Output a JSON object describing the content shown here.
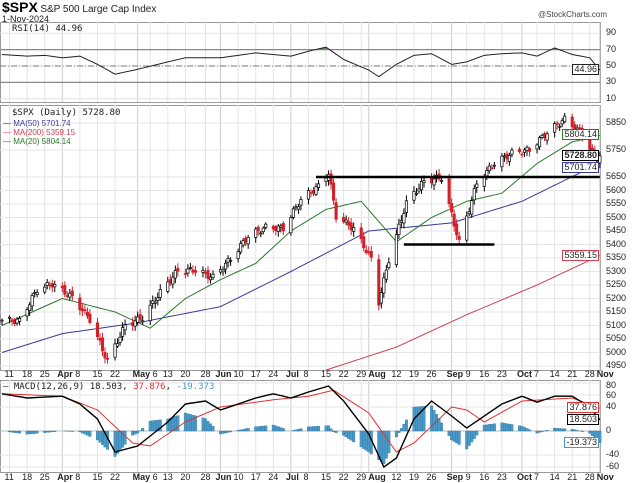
{
  "header": {
    "symbol": "$SPX",
    "name": "S&P 500 Large Cap Index",
    "date": "1-Nov-2024",
    "watermark": "@StockCharts.com"
  },
  "chart_data": [
    {
      "type": "line",
      "panel": "rsi",
      "legend": "RSI(14) 44.96",
      "last_label": "44.96",
      "yticks": [
        90,
        70,
        50,
        30,
        10
      ],
      "ylim": [
        0,
        100
      ],
      "overbought": 70,
      "oversold": 30,
      "mid": 50,
      "fill_color": "#5a8a5a",
      "values": [
        [
          "2024-03-08",
          64
        ],
        [
          "2024-03-18",
          62
        ],
        [
          "2024-03-25",
          63
        ],
        [
          "2024-04-01",
          60
        ],
        [
          "2024-04-08",
          62
        ],
        [
          "2024-04-15",
          52
        ],
        [
          "2024-04-22",
          40
        ],
        [
          "2024-05-01",
          46
        ],
        [
          "2024-05-13",
          55
        ],
        [
          "2024-05-20",
          60
        ],
        [
          "2024-06-03",
          60
        ],
        [
          "2024-06-17",
          66
        ],
        [
          "2024-07-01",
          62
        ],
        [
          "2024-07-08",
          68
        ],
        [
          "2024-07-15",
          73
        ],
        [
          "2024-07-22",
          58
        ],
        [
          "2024-08-01",
          45
        ],
        [
          "2024-08-05",
          37
        ],
        [
          "2024-08-12",
          52
        ],
        [
          "2024-08-19",
          63
        ],
        [
          "2024-08-26",
          65
        ],
        [
          "2024-09-03",
          52
        ],
        [
          "2024-09-09",
          55
        ],
        [
          "2024-09-16",
          63
        ],
        [
          "2024-09-23",
          65
        ],
        [
          "2024-10-01",
          66
        ],
        [
          "2024-10-07",
          62
        ],
        [
          "2024-10-14",
          72
        ],
        [
          "2024-10-21",
          64
        ],
        [
          "2024-10-28",
          60
        ],
        [
          "2024-11-01",
          44.96
        ]
      ]
    },
    {
      "type": "candlestick",
      "panel": "price",
      "legend": "$SPX (Daily) 5728.80",
      "last_label": "5728.80",
      "ylim": [
        4925,
        5900
      ],
      "yticks": [
        5850,
        5750,
        5650,
        5600,
        5550,
        5500,
        5450,
        5400,
        5350,
        5300,
        5250,
        5200,
        5150,
        5100,
        5050,
        5000,
        4950
      ],
      "closes": [
        [
          "2024-03-08",
          5120
        ],
        [
          "2024-03-15",
          5117
        ],
        [
          "2024-03-22",
          5234
        ],
        [
          "2024-03-28",
          5254
        ],
        [
          "2024-04-05",
          5204
        ],
        [
          "2024-04-12",
          5123
        ],
        [
          "2024-04-19",
          4967
        ],
        [
          "2024-04-26",
          5100
        ],
        [
          "2024-05-03",
          5128
        ],
        [
          "2024-05-10",
          5223
        ],
        [
          "2024-05-17",
          5303
        ],
        [
          "2024-05-24",
          5305
        ],
        [
          "2024-05-31",
          5278
        ],
        [
          "2024-06-07",
          5347
        ],
        [
          "2024-06-14",
          5431
        ],
        [
          "2024-06-21",
          5464
        ],
        [
          "2024-06-28",
          5460
        ],
        [
          "2024-07-05",
          5567
        ],
        [
          "2024-07-12",
          5615
        ],
        [
          "2024-07-16",
          5667
        ],
        [
          "2024-07-19",
          5505
        ],
        [
          "2024-07-26",
          5459
        ],
        [
          "2024-08-02",
          5346
        ],
        [
          "2024-08-05",
          5186
        ],
        [
          "2024-08-09",
          5344
        ],
        [
          "2024-08-16",
          5554
        ],
        [
          "2024-08-23",
          5634
        ],
        [
          "2024-08-30",
          5648
        ],
        [
          "2024-09-06",
          5408
        ],
        [
          "2024-09-13",
          5626
        ],
        [
          "2024-09-20",
          5702
        ],
        [
          "2024-09-27",
          5738
        ],
        [
          "2024-10-04",
          5751
        ],
        [
          "2024-10-11",
          5815
        ],
        [
          "2024-10-18",
          5864
        ],
        [
          "2024-10-25",
          5808
        ],
        [
          "2024-10-31",
          5705
        ],
        [
          "2024-11-01",
          5728.8
        ]
      ],
      "up_color": "#000000",
      "down_color": "#d0202a",
      "overlays": [
        {
          "name": "MA(50) 5701.74",
          "label": "5701.74",
          "color": "#3a3a9a",
          "values": [
            [
              "2024-03-08",
              5000
            ],
            [
              "2024-04-01",
              5070
            ],
            [
              "2024-05-01",
              5110
            ],
            [
              "2024-06-03",
              5170
            ],
            [
              "2024-07-01",
              5300
            ],
            [
              "2024-08-01",
              5450
            ],
            [
              "2024-08-12",
              5460
            ],
            [
              "2024-09-03",
              5480
            ],
            [
              "2024-10-01",
              5560
            ],
            [
              "2024-11-01",
              5701.74
            ]
          ]
        },
        {
          "name": "MA(200) 5359.15",
          "label": "5359.15",
          "color": "#d04050",
          "values": [
            [
              "2024-07-15",
              4935
            ],
            [
              "2024-08-12",
              5020
            ],
            [
              "2024-09-09",
              5140
            ],
            [
              "2024-10-07",
              5250
            ],
            [
              "2024-11-01",
              5359.15
            ]
          ]
        },
        {
          "name": "MA(20) 5804.14",
          "label": "5804.14",
          "color": "#2a7a2a",
          "values": [
            [
              "2024-03-08",
              5100
            ],
            [
              "2024-04-01",
              5200
            ],
            [
              "2024-04-22",
              5150
            ],
            [
              "2024-05-06",
              5090
            ],
            [
              "2024-05-20",
              5200
            ],
            [
              "2024-06-03",
              5270
            ],
            [
              "2024-06-17",
              5330
            ],
            [
              "2024-07-01",
              5450
            ],
            [
              "2024-07-15",
              5530
            ],
            [
              "2024-07-29",
              5560
            ],
            [
              "2024-08-12",
              5410
            ],
            [
              "2024-08-26",
              5500
            ],
            [
              "2024-09-09",
              5560
            ],
            [
              "2024-09-23",
              5590
            ],
            [
              "2024-10-07",
              5700
            ],
            [
              "2024-10-21",
              5780
            ],
            [
              "2024-11-01",
              5804.14
            ]
          ]
        }
      ],
      "hlines": [
        {
          "value": 5650,
          "from": "2024-07-11",
          "to": "2024-11-01"
        },
        {
          "value": 5400,
          "from": "2024-08-15",
          "to": "2024-09-20"
        }
      ]
    },
    {
      "type": "line",
      "panel": "macd",
      "legend": "MACD(12,26,9)",
      "macd_label": "18.503",
      "signal_label": "37.876",
      "hist_label": "-19.373",
      "yticks": [
        80,
        60,
        40,
        0,
        -40,
        -60
      ],
      "ylim": [
        -70,
        85
      ],
      "macd_color": "#000000",
      "signal_color": "#e03030",
      "hist_color": "#4a9ac8",
      "macd": [
        [
          "2024-03-08",
          62
        ],
        [
          "2024-03-18",
          55
        ],
        [
          "2024-04-01",
          58
        ],
        [
          "2024-04-08",
          45
        ],
        [
          "2024-04-15",
          20
        ],
        [
          "2024-04-22",
          -35
        ],
        [
          "2024-05-01",
          -25
        ],
        [
          "2024-05-13",
          15
        ],
        [
          "2024-05-20",
          45
        ],
        [
          "2024-05-28",
          50
        ],
        [
          "2024-06-03",
          35
        ],
        [
          "2024-06-17",
          55
        ],
        [
          "2024-06-24",
          62
        ],
        [
          "2024-07-01",
          55
        ],
        [
          "2024-07-08",
          65
        ],
        [
          "2024-07-16",
          75
        ],
        [
          "2024-07-22",
          50
        ],
        [
          "2024-08-01",
          -5
        ],
        [
          "2024-08-07",
          -60
        ],
        [
          "2024-08-12",
          -45
        ],
        [
          "2024-08-19",
          20
        ],
        [
          "2024-08-26",
          50
        ],
        [
          "2024-09-03",
          25
        ],
        [
          "2024-09-09",
          5
        ],
        [
          "2024-09-16",
          25
        ],
        [
          "2024-09-23",
          45
        ],
        [
          "2024-10-01",
          58
        ],
        [
          "2024-10-07",
          48
        ],
        [
          "2024-10-14",
          58
        ],
        [
          "2024-10-21",
          58
        ],
        [
          "2024-10-28",
          40
        ],
        [
          "2024-11-01",
          18.503
        ]
      ],
      "signal": [
        [
          "2024-03-08",
          62
        ],
        [
          "2024-04-01",
          58
        ],
        [
          "2024-04-15",
          35
        ],
        [
          "2024-04-29",
          -20
        ],
        [
          "2024-05-06",
          -25
        ],
        [
          "2024-05-20",
          15
        ],
        [
          "2024-06-03",
          40
        ],
        [
          "2024-06-24",
          52
        ],
        [
          "2024-07-08",
          58
        ],
        [
          "2024-07-18",
          68
        ],
        [
          "2024-08-01",
          30
        ],
        [
          "2024-08-12",
          -35
        ],
        [
          "2024-08-19",
          -20
        ],
        [
          "2024-09-03",
          40
        ],
        [
          "2024-09-09",
          35
        ],
        [
          "2024-09-16",
          15
        ],
        [
          "2024-10-01",
          50
        ],
        [
          "2024-10-21",
          55
        ],
        [
          "2024-11-01",
          37.876
        ]
      ]
    }
  ],
  "xticks": [
    [
      "2024-03-11",
      "11"
    ],
    [
      "2024-03-18",
      "18"
    ],
    [
      "2024-03-25",
      "25"
    ],
    [
      "2024-04-01",
      "Apr"
    ],
    [
      "2024-04-08",
      "8"
    ],
    [
      "2024-04-15",
      "15"
    ],
    [
      "2024-04-22",
      "22"
    ],
    [
      "2024-05-01",
      "May"
    ],
    [
      "2024-05-06",
      "6"
    ],
    [
      "2024-05-13",
      "13"
    ],
    [
      "2024-05-20",
      "20"
    ],
    [
      "2024-05-28",
      "28"
    ],
    [
      "2024-06-03",
      "Jun"
    ],
    [
      "2024-06-10",
      "10"
    ],
    [
      "2024-06-17",
      "17"
    ],
    [
      "2024-06-24",
      "24"
    ],
    [
      "2024-07-01",
      "Jul"
    ],
    [
      "2024-07-08",
      "8"
    ],
    [
      "2024-07-15",
      "15"
    ],
    [
      "2024-07-22",
      "22"
    ],
    [
      "2024-07-29",
      "29"
    ],
    [
      "2024-08-01",
      "Aug"
    ],
    [
      "2024-08-12",
      "12"
    ],
    [
      "2024-08-19",
      "19"
    ],
    [
      "2024-08-26",
      "26"
    ],
    [
      "2024-09-03",
      "Sep"
    ],
    [
      "2024-09-09",
      "9"
    ],
    [
      "2024-09-16",
      "16"
    ],
    [
      "2024-09-23",
      "23"
    ],
    [
      "2024-10-01",
      "Oct"
    ],
    [
      "2024-10-07",
      "7"
    ],
    [
      "2024-10-14",
      "14"
    ],
    [
      "2024-10-21",
      "21"
    ],
    [
      "2024-10-28",
      "28"
    ],
    [
      "2024-11-01",
      "Nov"
    ]
  ]
}
